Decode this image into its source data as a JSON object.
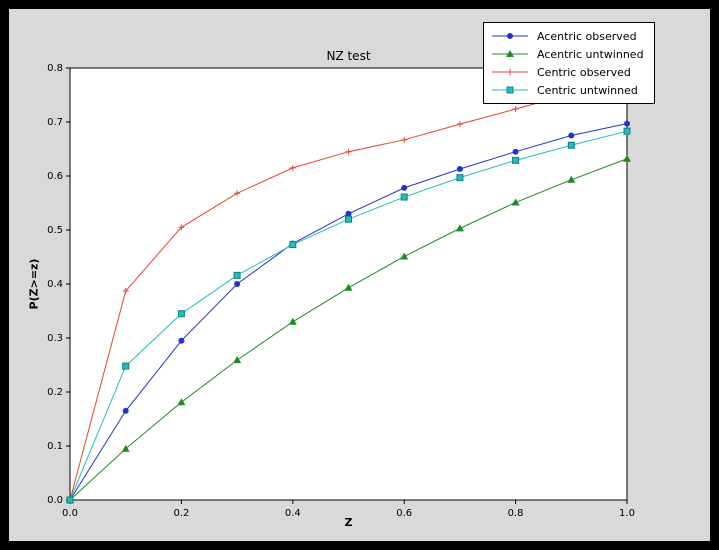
{
  "window": {
    "background": "#000000",
    "figure_background": "#d9d9d9",
    "axes_background": "#ffffff",
    "frame_color": "#000000"
  },
  "chart_data": {
    "type": "line",
    "title": "NZ test",
    "xlabel": "Z",
    "ylabel": "P(Z>=z)",
    "xlim": [
      0.0,
      1.0
    ],
    "ylim": [
      0.0,
      0.8
    ],
    "xticks": [
      0.0,
      0.2,
      0.4,
      0.6,
      0.8,
      1.0
    ],
    "yticks": [
      0.0,
      0.1,
      0.2,
      0.3,
      0.4,
      0.5,
      0.6,
      0.7,
      0.8
    ],
    "grid": false,
    "legend_position": "upper right",
    "x": [
      0.0,
      0.1,
      0.2,
      0.3,
      0.4,
      0.5,
      0.6,
      0.7,
      0.8,
      0.9,
      1.0
    ],
    "series": [
      {
        "name": "Acentric observed",
        "color": "#2233cc",
        "marker": "circle",
        "values": [
          0.0,
          0.165,
          0.295,
          0.4,
          0.475,
          0.53,
          0.578,
          0.613,
          0.645,
          0.675,
          0.697
        ]
      },
      {
        "name": "Acentric untwinned",
        "color": "#1e8b22",
        "marker": "triangle",
        "values": [
          0.0,
          0.095,
          0.181,
          0.259,
          0.33,
          0.393,
          0.451,
          0.503,
          0.551,
          0.593,
          0.632
        ]
      },
      {
        "name": "Centric observed",
        "color": "#e8432c",
        "marker": "plus",
        "values": [
          0.0,
          0.387,
          0.505,
          0.568,
          0.615,
          0.645,
          0.667,
          0.696,
          0.724,
          0.752,
          0.778
        ]
      },
      {
        "name": "Centric untwinned",
        "color": "#23bdbd",
        "marker": "square",
        "marker_edge": "#0e8080",
        "values": [
          0.0,
          0.248,
          0.345,
          0.416,
          0.473,
          0.52,
          0.561,
          0.597,
          0.629,
          0.657,
          0.683
        ]
      }
    ]
  }
}
